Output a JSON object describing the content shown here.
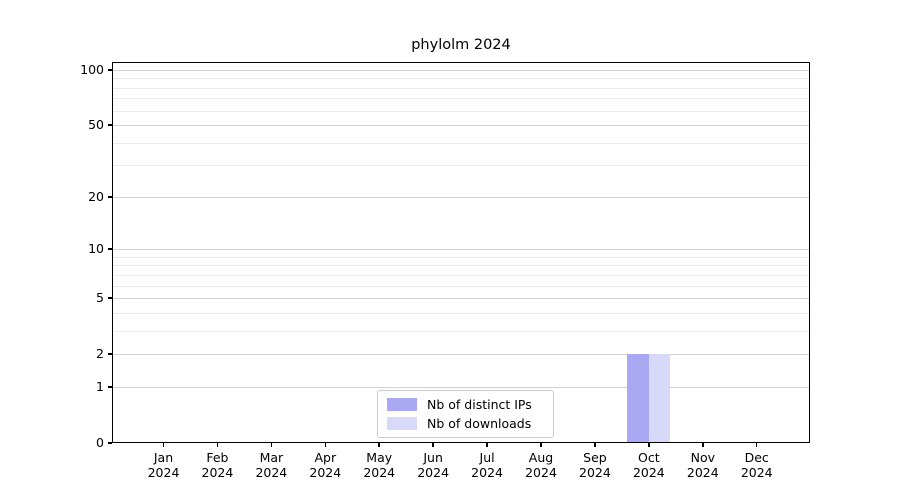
{
  "chart_data": {
    "type": "bar",
    "title": "phylolm 2024",
    "categories": [
      "Jan 2024",
      "Feb 2024",
      "Mar 2024",
      "Apr 2024",
      "May 2024",
      "Jun 2024",
      "Jul 2024",
      "Aug 2024",
      "Sep 2024",
      "Oct 2024",
      "Nov 2024",
      "Dec 2024"
    ],
    "x_labels": [
      [
        "Jan",
        "2024"
      ],
      [
        "Feb",
        "2024"
      ],
      [
        "Mar",
        "2024"
      ],
      [
        "Apr",
        "2024"
      ],
      [
        "May",
        "2024"
      ],
      [
        "Jun",
        "2024"
      ],
      [
        "Jul",
        "2024"
      ],
      [
        "Aug",
        "2024"
      ],
      [
        "Sep",
        "2024"
      ],
      [
        "Oct",
        "2024"
      ],
      [
        "Nov",
        "2024"
      ],
      [
        "Dec",
        "2024"
      ]
    ],
    "series": [
      {
        "name": "Nb of distinct IPs",
        "key": "distinct-ips",
        "color": "#a9a9f3",
        "values": [
          0,
          0,
          0,
          0,
          0,
          0,
          0,
          0,
          0,
          2,
          0,
          0
        ]
      },
      {
        "name": "Nb of downloads",
        "key": "downloads",
        "color": "#d8d8f8",
        "values": [
          0,
          0,
          0,
          0,
          0,
          0,
          0,
          0,
          0,
          2,
          0,
          0
        ]
      }
    ],
    "xlabel": "",
    "ylabel": "",
    "y_scale": "log1p",
    "y_major_ticks": [
      0,
      1,
      2,
      5,
      10,
      20,
      50,
      100
    ],
    "y_minor_ticks": [
      3,
      4,
      6,
      7,
      8,
      9,
      30,
      40,
      60,
      70,
      80,
      90
    ],
    "ylim": [
      0,
      110
    ],
    "grid": true,
    "legend": {
      "position": "bottom-center-inside"
    }
  },
  "colors": {
    "background": "#ffffff",
    "spine": "#000000",
    "major_grid": "#d2d2d2",
    "minor_grid": "#ececec",
    "legend_border": "#cbcbcb",
    "bar_distinct_ips": "#a9a9f3",
    "bar_downloads": "#d8d8f8"
  }
}
